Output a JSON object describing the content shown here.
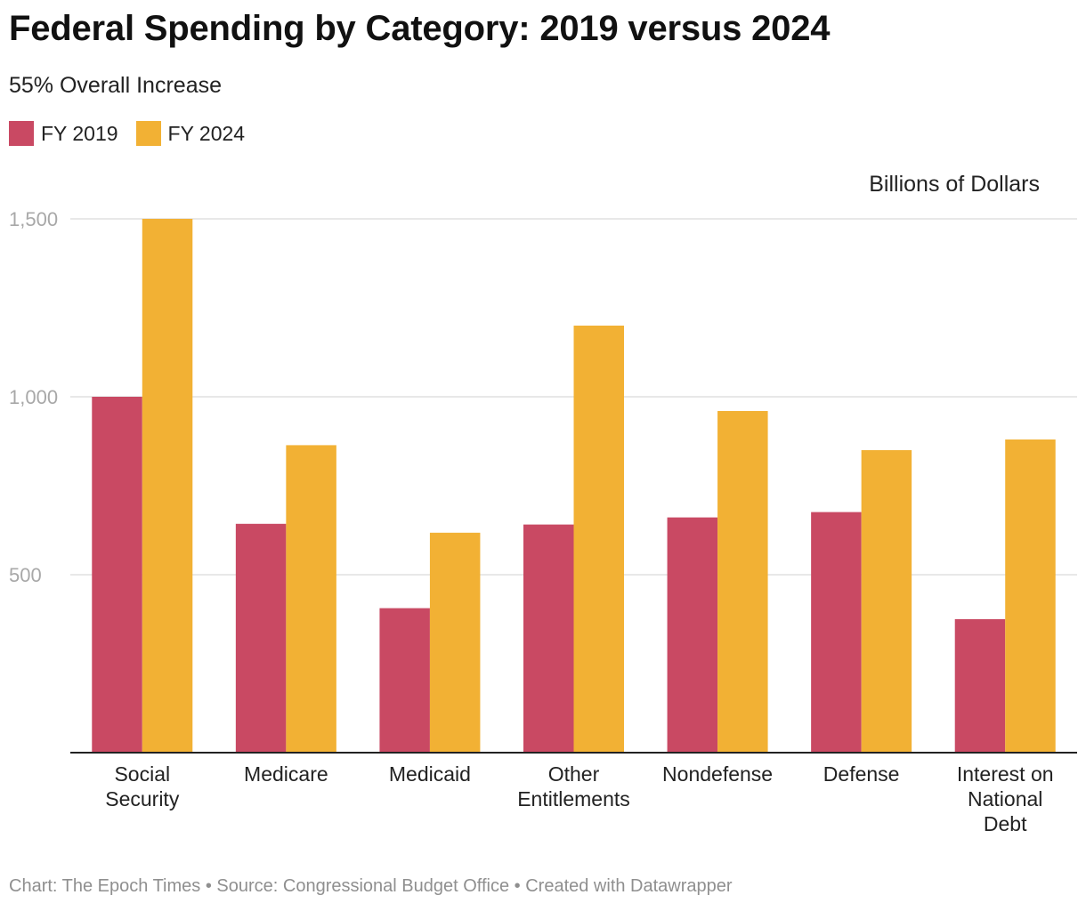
{
  "header": {
    "title": "Federal Spending by Category: 2019 versus 2024",
    "subtitle": "55% Overall Increase"
  },
  "legend": {
    "items": [
      {
        "label": "FY 2019",
        "color": "#c94963"
      },
      {
        "label": "FY 2024",
        "color": "#f2b134"
      }
    ]
  },
  "footer": {
    "credit": "Chart: The Epoch Times • Source: Congressional Budget Office • Created with Datawrapper"
  },
  "chart_data": {
    "type": "bar",
    "title": "Federal Spending by Category: 2019 versus 2024",
    "subtitle": "55% Overall Increase",
    "unit_label": "Billions of Dollars",
    "xlabel": "",
    "ylabel": "Billions of Dollars",
    "ylim": [
      0,
      1500
    ],
    "yticks": [
      500,
      1000,
      1500
    ],
    "ytick_labels": [
      "500",
      "1,000",
      "1,500"
    ],
    "grid": true,
    "legend_position": "top-left",
    "categories": [
      [
        "Social",
        "Security"
      ],
      [
        "Medicare"
      ],
      [
        "Medicaid"
      ],
      [
        "Other",
        "Entitlements"
      ],
      [
        "Nondefense"
      ],
      [
        "Defense"
      ],
      [
        "Interest on",
        "National",
        "Debt"
      ]
    ],
    "series": [
      {
        "name": "FY 2019",
        "color": "#c94963",
        "values": [
          1000,
          643,
          406,
          641,
          661,
          676,
          375
        ]
      },
      {
        "name": "FY 2024",
        "color": "#f2b134",
        "values": [
          1500,
          864,
          618,
          1200,
          960,
          850,
          880
        ]
      }
    ]
  }
}
